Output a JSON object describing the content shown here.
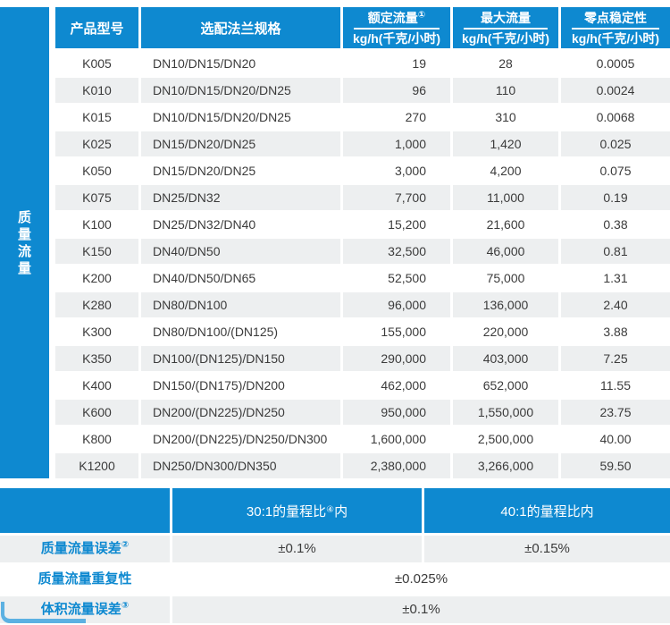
{
  "colors": {
    "primary_blue": "#0e89d0",
    "alt_row_gray": "#edeff0",
    "text_dark": "#3b3b3b",
    "corner_accent_blue": "#5cb1e2"
  },
  "sidebar": {
    "label": "质量流量"
  },
  "table": {
    "header": {
      "model": "产品型号",
      "flange": "选配法兰规格",
      "rated_title": "额定流量",
      "rated_sup": "①",
      "rated_unit": "kg/h(千克/小时)",
      "max_title": "最大流量",
      "max_unit": "kg/h(千克/小时)",
      "zero_title": "零点稳定性",
      "zero_unit": "kg/h(千克/小时)"
    },
    "rows": [
      {
        "model": "K005",
        "flange": "DN10/DN15/DN20",
        "rated": "19",
        "max": "28",
        "zero": "0.0005"
      },
      {
        "model": "K010",
        "flange": "DN10/DN15/DN20/DN25",
        "rated": "96",
        "max": "110",
        "zero": "0.0024"
      },
      {
        "model": "K015",
        "flange": "DN10/DN15/DN20/DN25",
        "rated": "270",
        "max": "310",
        "zero": "0.0068"
      },
      {
        "model": "K025",
        "flange": "DN15/DN20/DN25",
        "rated": "1,000",
        "max": "1,420",
        "zero": "0.025"
      },
      {
        "model": "K050",
        "flange": "DN15/DN20/DN25",
        "rated": "3,000",
        "max": "4,200",
        "zero": "0.075"
      },
      {
        "model": "K075",
        "flange": "DN25/DN32",
        "rated": "7,700",
        "max": "11,000",
        "zero": "0.19"
      },
      {
        "model": "K100",
        "flange": "DN25/DN32/DN40",
        "rated": "15,200",
        "max": "21,600",
        "zero": "0.38"
      },
      {
        "model": "K150",
        "flange": "DN40/DN50",
        "rated": "32,500",
        "max": "46,000",
        "zero": "0.81"
      },
      {
        "model": "K200",
        "flange": "DN40/DN50/DN65",
        "rated": "52,500",
        "max": "75,000",
        "zero": "1.31"
      },
      {
        "model": "K280",
        "flange": "DN80/DN100",
        "rated": "96,000",
        "max": "136,000",
        "zero": "2.40"
      },
      {
        "model": "K300",
        "flange": "DN80/DN100/(DN125)",
        "rated": "155,000",
        "max": "220,000",
        "zero": "3.88"
      },
      {
        "model": "K350",
        "flange": "DN100/(DN125)/DN150",
        "rated": "290,000",
        "max": "403,000",
        "zero": "7.25"
      },
      {
        "model": "K400",
        "flange": "DN150/(DN175)/DN200",
        "rated": "462,000",
        "max": "652,000",
        "zero": "11.55"
      },
      {
        "model": "K600",
        "flange": "DN200/(DN225)/DN250",
        "rated": "950,000",
        "max": "1,550,000",
        "zero": "23.75"
      },
      {
        "model": "K800",
        "flange": "DN200/(DN225)/DN250/DN300",
        "rated": "1,600,000",
        "max": "2,500,000",
        "zero": "40.00"
      },
      {
        "model": "K1200",
        "flange": "DN250/DN300/DN350",
        "rated": "2,380,000",
        "max": "3,266,000",
        "zero": "59.50"
      }
    ]
  },
  "bottom": {
    "band": {
      "col1_pre": "30:1的量程比",
      "col1_sup": "④",
      "col1_post": "内",
      "col2": "40:1的量程比内"
    },
    "mass_error": {
      "label": "质量流量误差",
      "sup": "②",
      "val1": "±0.1%",
      "val2": "±0.15%"
    },
    "repeatability": {
      "label": "质量流量重复性",
      "val": "±0.025%"
    },
    "volume_error": {
      "label": "体积流量误差",
      "sup": "③",
      "val": "±0.1%"
    }
  }
}
